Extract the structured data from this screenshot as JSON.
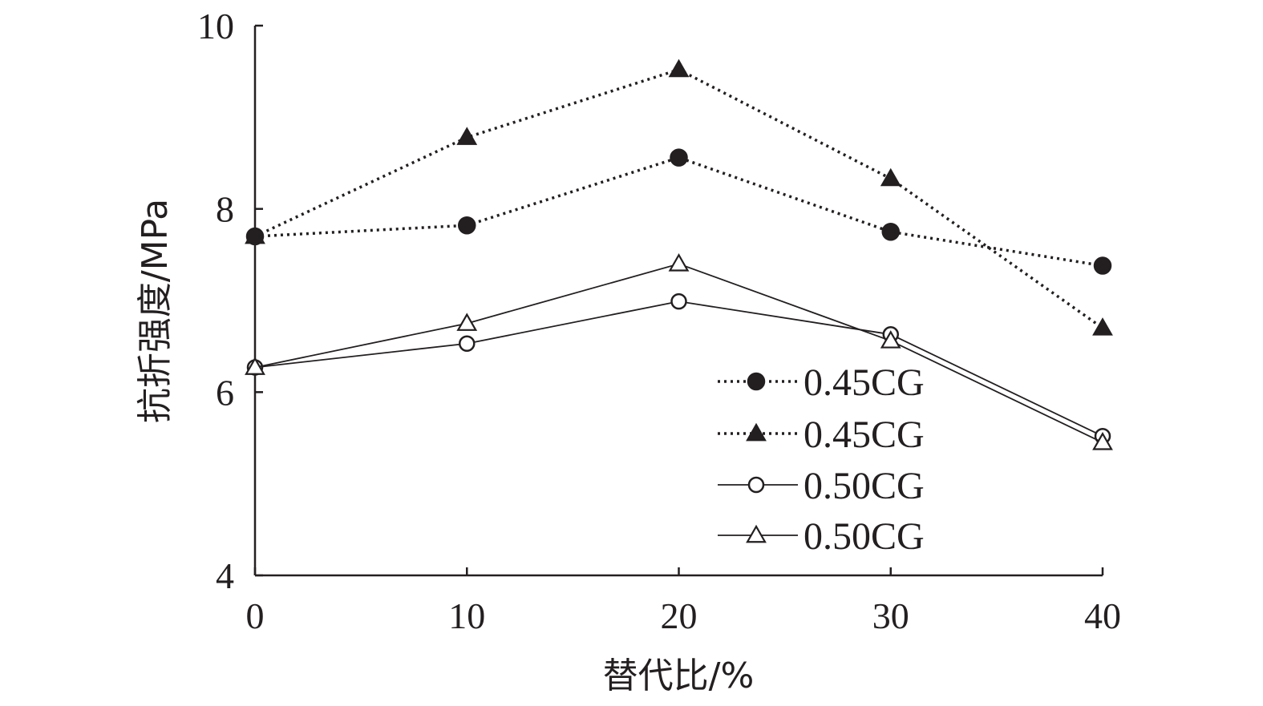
{
  "chart_data": {
    "type": "line",
    "title": "",
    "xlabel": "替代比/%",
    "ylabel": "抗折强度/MPa",
    "x": [
      0,
      10,
      20,
      30,
      40
    ],
    "x_ticks": [
      "0",
      "10",
      "20",
      "30",
      "40"
    ],
    "y_ticks": [
      "4",
      "6",
      "8",
      "10"
    ],
    "xlim": [
      0,
      40
    ],
    "ylim": [
      4,
      10
    ],
    "grid": false,
    "legend_position": "bottom-right",
    "series": [
      {
        "name": "0.45CG",
        "marker": "filled-circle",
        "line": "dotted",
        "values": [
          7.7,
          7.82,
          8.56,
          7.75,
          7.38
        ]
      },
      {
        "name": "0.45CG",
        "marker": "filled-triangle",
        "line": "dotted",
        "values": [
          7.7,
          8.78,
          9.52,
          8.33,
          6.7
        ]
      },
      {
        "name": "0.50CG",
        "marker": "open-circle",
        "line": "solid",
        "values": [
          6.27,
          6.53,
          6.99,
          6.63,
          5.52
        ]
      },
      {
        "name": "0.50CG",
        "marker": "open-triangle",
        "line": "solid",
        "values": [
          6.27,
          6.75,
          7.4,
          6.56,
          5.45
        ]
      }
    ],
    "colors": {
      "ink": "#231f20",
      "background": "#ffffff"
    }
  }
}
